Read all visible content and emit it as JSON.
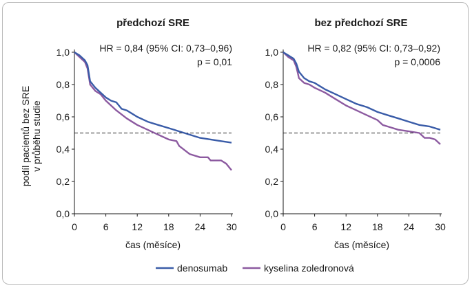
{
  "figure": {
    "ylabel_line1": "podíl pacientů bez SRE",
    "ylabel_line2": "v průběhu studie",
    "legend": [
      {
        "label": "denosumab",
        "color": "#3a5ca8"
      },
      {
        "label": "kyselina zoledronová",
        "color": "#8c5aa0"
      }
    ]
  },
  "chart_data": [
    {
      "type": "line",
      "title": "předchozí SRE",
      "xlabel": "čas (měsíce)",
      "ylabel": "podíl pacientů bez SRE v průběhu studie",
      "xlim": [
        0,
        30
      ],
      "ylim": [
        0,
        1
      ],
      "xticks": [
        0,
        6,
        12,
        18,
        24,
        30
      ],
      "xtick_labels": [
        "0",
        "6",
        "12",
        "18",
        "24",
        "30"
      ],
      "yticks": [
        0,
        0.2,
        0.4,
        0.6,
        0.8,
        1.0
      ],
      "ytick_labels": [
        "0,0",
        "0,2",
        "0,4",
        "0,6",
        "0,8",
        "1,0"
      ],
      "reference_line_y": 0.5,
      "annotation_hr": "HR = 0,84 (95% CI: 0,73–0,96)",
      "annotation_p": "p = 0,01",
      "series": [
        {
          "name": "denosumab",
          "color": "#3a5ca8",
          "x": [
            0,
            1,
            2,
            2.5,
            2.8,
            3,
            4,
            5,
            6,
            7,
            8,
            9,
            10,
            11,
            12,
            14,
            16,
            18,
            20,
            22,
            24,
            26,
            28,
            30
          ],
          "y": [
            1.0,
            0.98,
            0.95,
            0.92,
            0.86,
            0.82,
            0.78,
            0.75,
            0.72,
            0.7,
            0.69,
            0.65,
            0.64,
            0.62,
            0.6,
            0.57,
            0.55,
            0.53,
            0.51,
            0.49,
            0.47,
            0.46,
            0.45,
            0.44
          ]
        },
        {
          "name": "kyselina zoledronová",
          "color": "#8c5aa0",
          "x": [
            0,
            1,
            2,
            2.5,
            2.8,
            3,
            4,
            5,
            6,
            8,
            10,
            12,
            14,
            16,
            18,
            19.5,
            20,
            22,
            24,
            25.5,
            26,
            27,
            28,
            29,
            30
          ],
          "y": [
            1.0,
            0.97,
            0.94,
            0.9,
            0.84,
            0.8,
            0.76,
            0.74,
            0.7,
            0.64,
            0.59,
            0.55,
            0.52,
            0.49,
            0.46,
            0.45,
            0.42,
            0.37,
            0.35,
            0.35,
            0.33,
            0.33,
            0.33,
            0.31,
            0.27
          ]
        }
      ]
    },
    {
      "type": "line",
      "title": "bez předchozí SRE",
      "xlabel": "čas (měsíce)",
      "ylabel": "",
      "xlim": [
        0,
        30
      ],
      "ylim": [
        0,
        1
      ],
      "xticks": [
        0,
        6,
        12,
        18,
        24,
        30
      ],
      "xtick_labels": [
        "0",
        "6",
        "12",
        "18",
        "24",
        "30"
      ],
      "yticks": [
        0,
        0.2,
        0.4,
        0.6,
        0.8,
        1.0
      ],
      "ytick_labels": [
        "0,0",
        "0,2",
        "0,4",
        "0,6",
        "0,8",
        "1,0"
      ],
      "reference_line_y": 0.5,
      "annotation_hr": "HR = 0,82 (95% CI: 0,73–0,92)",
      "annotation_p": "p = 0,0006",
      "series": [
        {
          "name": "denosumab",
          "color": "#3a5ca8",
          "x": [
            0,
            1,
            2,
            2.5,
            2.8,
            3,
            4,
            5,
            6,
            7,
            8,
            10,
            12,
            14,
            16,
            18,
            20,
            22,
            24,
            26,
            28,
            30
          ],
          "y": [
            1.0,
            0.98,
            0.96,
            0.93,
            0.9,
            0.88,
            0.84,
            0.82,
            0.81,
            0.79,
            0.77,
            0.74,
            0.71,
            0.68,
            0.66,
            0.63,
            0.61,
            0.59,
            0.57,
            0.55,
            0.54,
            0.52
          ]
        },
        {
          "name": "kyselina zoledronová",
          "color": "#8c5aa0",
          "x": [
            0,
            1,
            2,
            2.5,
            2.8,
            3,
            4,
            5,
            6,
            8,
            10,
            12,
            14,
            16,
            18,
            19,
            20,
            22,
            24,
            26,
            27,
            28,
            29,
            30
          ],
          "y": [
            1.0,
            0.97,
            0.95,
            0.91,
            0.87,
            0.84,
            0.81,
            0.8,
            0.78,
            0.75,
            0.71,
            0.67,
            0.64,
            0.61,
            0.58,
            0.55,
            0.54,
            0.52,
            0.51,
            0.5,
            0.47,
            0.47,
            0.46,
            0.43
          ]
        }
      ]
    }
  ]
}
